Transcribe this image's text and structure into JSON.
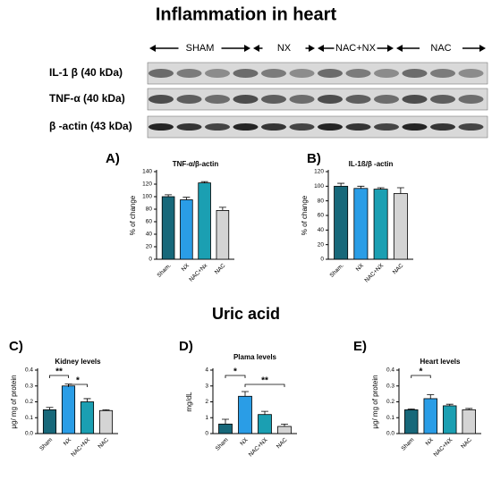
{
  "header": {
    "title": "Inflammation in heart"
  },
  "blot": {
    "groups": [
      "SHAM",
      "NX",
      "NAC+NX",
      "NAC"
    ],
    "rows": [
      "IL-1 β (40 kDa)",
      "TNF-α (40 kDa)",
      "β -actin (43 kDa)"
    ]
  },
  "section_title": "Uric acid",
  "chart_data": [
    {
      "type": "bar",
      "panel": "A)",
      "title": "TNF-α/β-actin",
      "ylabel": "% of change",
      "categories": [
        "Sham.",
        "NX",
        "NAC+Nx",
        "NAC"
      ],
      "colors": [
        "#17687a",
        "#2a9de6",
        "#1b9fb2",
        "#d4d4d4"
      ],
      "values": [
        100,
        95,
        122,
        78
      ],
      "errors": [
        3,
        4,
        2,
        5
      ],
      "ylim": [
        0,
        140
      ],
      "yticks": [
        0,
        20,
        40,
        60,
        80,
        100,
        120,
        140
      ],
      "significance": []
    },
    {
      "type": "bar",
      "panel": "B)",
      "title": "IL-1ß/β -actin",
      "ylabel": "% of change",
      "categories": [
        "Sham.",
        "NX",
        "NAC+NX",
        "NAC"
      ],
      "colors": [
        "#17687a",
        "#2a9de6",
        "#1b9fb2",
        "#d4d4d4"
      ],
      "values": [
        100,
        97,
        96,
        90
      ],
      "errors": [
        4,
        3,
        2,
        8
      ],
      "ylim": [
        0,
        120
      ],
      "yticks": [
        0,
        20,
        40,
        60,
        80,
        100,
        120
      ],
      "significance": []
    },
    {
      "type": "bar",
      "panel": "C)",
      "title": "Kidney levels",
      "ylabel": "μg/ mg of protein",
      "categories": [
        "Sham",
        "NX",
        "NAC+NX",
        "NAC"
      ],
      "colors": [
        "#17687a",
        "#2a9de6",
        "#1b9fb2",
        "#d4d4d4"
      ],
      "values": [
        0.15,
        0.3,
        0.2,
        0.145
      ],
      "errors": [
        0.015,
        0.012,
        0.02,
        0.005
      ],
      "ylim": [
        0,
        0.4
      ],
      "yticks": [
        {
          "value": 0,
          "label": "0.0"
        },
        0.1,
        0.2,
        0.3,
        0.4
      ],
      "significance": [
        {
          "label": "**",
          "groups": [
            "Sham",
            "NX"
          ]
        },
        {
          "label": "*",
          "groups": [
            "NX",
            "NAC+NX"
          ]
        }
      ]
    },
    {
      "type": "bar",
      "panel": "D)",
      "title": "Plama levels",
      "ylabel": "mg/dL",
      "categories": [
        "Sham",
        "NX",
        "NAC+NX",
        "NAC"
      ],
      "colors": [
        "#17687a",
        "#2a9de6",
        "#1b9fb2",
        "#d4d4d4"
      ],
      "values": [
        0.6,
        2.35,
        1.2,
        0.45
      ],
      "errors": [
        0.3,
        0.3,
        0.2,
        0.15
      ],
      "ylim": [
        0,
        4
      ],
      "yticks": [
        0,
        1,
        2,
        3,
        4
      ],
      "significance": [
        {
          "label": "*",
          "groups": [
            "Sham",
            "NX"
          ]
        },
        {
          "label": "**",
          "groups": [
            "NX",
            "NAC"
          ]
        }
      ]
    },
    {
      "type": "bar",
      "panel": "E)",
      "title": "Heart levels",
      "ylabel": "μg/ mg of protein",
      "categories": [
        "Sham",
        "NX",
        "NAC+NX",
        "NAC"
      ],
      "colors": [
        "#17687a",
        "#2a9de6",
        "#1b9fb2",
        "#d4d4d4"
      ],
      "values": [
        0.15,
        0.22,
        0.175,
        0.15
      ],
      "errors": [
        0.005,
        0.025,
        0.01,
        0.008
      ],
      "ylim": [
        0,
        0.4
      ],
      "yticks": [
        {
          "value": 0,
          "label": "0.0"
        },
        0.1,
        0.2,
        0.3,
        0.4
      ],
      "significance": [
        {
          "label": "*",
          "groups": [
            "Sham",
            "NX"
          ]
        }
      ]
    }
  ]
}
